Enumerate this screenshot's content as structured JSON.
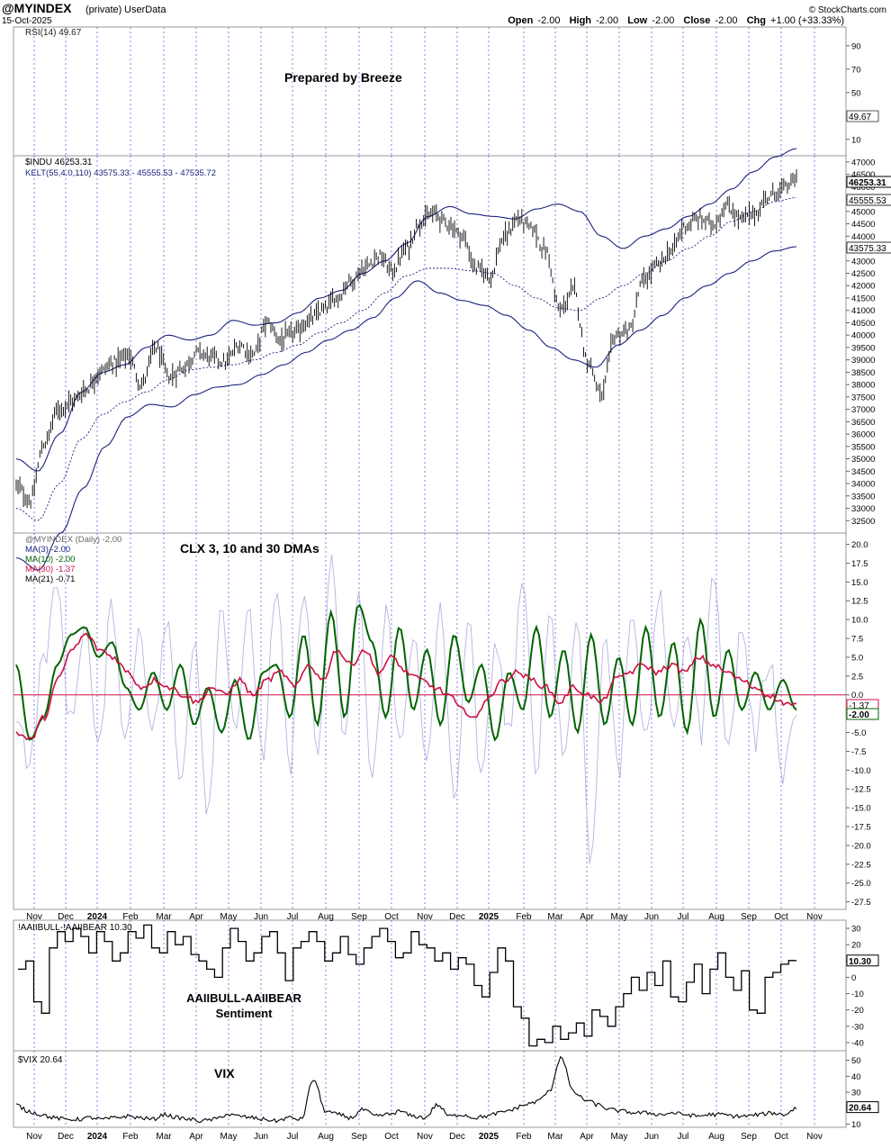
{
  "header": {
    "symbol": "@MYINDEX",
    "privacy": "(private)",
    "source": "UserData",
    "date": "15-Oct-2025",
    "open_label": "Open",
    "open_value": "-2.00",
    "high_label": "High",
    "high_value": "-2.00",
    "low_label": "Low",
    "low_value": "-2.00",
    "close_label": "Close",
    "close_value": "-2.00",
    "chg_label": "Chg",
    "chg_value": "+1.00 (+33.33%)",
    "brand": "© StockCharts.com"
  },
  "colors": {
    "navy": "#1a237e",
    "green": "#006400",
    "red": "#cc1040",
    "grid": "#3a3ad0",
    "lavender": "#b4b4e0",
    "price_bar": "#000000"
  },
  "x_axis": {
    "labels_top": [
      "Nov",
      "Dec",
      "2024",
      "Feb",
      "Mar",
      "Apr",
      "May",
      "Jun",
      "Jul",
      "Aug",
      "Sep",
      "Oct",
      "Nov",
      "Dec",
      "2025",
      "Feb",
      "Mar",
      "Apr",
      "May",
      "Jun",
      "Jul",
      "Aug",
      "Sep",
      "Oct",
      "Nov"
    ],
    "labels_bottom": [
      "Nov",
      "Dec",
      "2024",
      "Feb",
      "Mar",
      "Apr",
      "May",
      "Jun",
      "Jul",
      "Aug",
      "Sep",
      "Oct",
      "Nov",
      "Dec",
      "2025",
      "Feb",
      "Mar",
      "Apr",
      "May",
      "Jun",
      "Jul",
      "Aug",
      "Sep",
      "Oct",
      "Nov"
    ]
  },
  "chart_data": [
    {
      "panel": "rsi",
      "type": "line",
      "legend": "RSI(14) 49.67",
      "annotation": "Prepared by Breeze",
      "ylim": [
        0,
        100
      ],
      "y_ticks": [
        "90",
        "70",
        "50",
        "30",
        "10"
      ],
      "last_value": "49.67"
    },
    {
      "panel": "price",
      "type": "ohlc",
      "legend": [
        "$INDU 46253.31",
        "KELT(55,4.0,110) 43575.33 - 45555.53 - 47535.72"
      ],
      "ylim": [
        32000,
        47000
      ],
      "y_ticks": [
        "47000",
        "46500",
        "46000",
        "45500",
        "45000",
        "44500",
        "44000",
        "43500",
        "43000",
        "42500",
        "42000",
        "41500",
        "41000",
        "40500",
        "40000",
        "39500",
        "39000",
        "38500",
        "38000",
        "37500",
        "37000",
        "36500",
        "36000",
        "35500",
        "35000",
        "34500",
        "34000",
        "33500",
        "33000",
        "32500"
      ],
      "labels": {
        "close": "46253.31",
        "middle": "45555.53",
        "lower": "43575.33"
      },
      "x_months": [
        0,
        1,
        2,
        3,
        4,
        5,
        6,
        7,
        8,
        9,
        10,
        11,
        12,
        13,
        14,
        15,
        16,
        17,
        18,
        19,
        20,
        21,
        22,
        23,
        23.5
      ],
      "close_keypoints": [
        33900,
        33300,
        35600,
        37000,
        37300,
        37800,
        38500,
        38900,
        39200,
        38000,
        39500,
        38300,
        38700,
        39300,
        39100,
        38900,
        39600,
        39200,
        40500,
        39800,
        40100,
        40600,
        41000,
        41500,
        42200,
        42700,
        43200,
        42600,
        43500,
        44600,
        44900,
        44500,
        44000,
        42700,
        42400,
        43900,
        44700,
        44300,
        43400,
        41000,
        41800,
        39000,
        37600,
        40000,
        40200,
        42200,
        42800,
        43400,
        44400,
        44700,
        44500,
        45200,
        44700,
        44900,
        45600,
        45900,
        46300
      ],
      "upper_keypoints": [
        35000,
        34500,
        36000,
        37700,
        38500,
        38800,
        39500,
        40000,
        39800,
        40000,
        40600,
        40400,
        40500,
        40900,
        41500,
        41800,
        42500,
        43000,
        43700,
        44800,
        45200,
        44900,
        44800,
        44700,
        45100,
        45300,
        45000,
        44000,
        43500,
        44000,
        44300,
        44800,
        45300,
        45900,
        46600,
        47200,
        47540
      ],
      "mid_keypoints": [
        33000,
        32500,
        34000,
        35800,
        36800,
        37300,
        37700,
        38200,
        38600,
        38700,
        38800,
        39000,
        39300,
        39600,
        40100,
        40500,
        41000,
        41700,
        42400,
        42700,
        42700,
        42600,
        42500,
        42000,
        41500,
        41100,
        41000,
        41500,
        42000,
        42500,
        43000,
        43500,
        44000,
        44600,
        45000,
        45400,
        45560
      ],
      "lower_keypoints": [
        31000,
        30500,
        32000,
        33800,
        35500,
        36700,
        37200,
        37100,
        37600,
        37900,
        38000,
        38400,
        38800,
        39300,
        39800,
        40200,
        40700,
        41500,
        42200,
        41700,
        41400,
        41200,
        40800,
        40200,
        39500,
        39000,
        38700,
        39600,
        40200,
        40800,
        41500,
        42000,
        42500,
        43000,
        43400,
        43575
      ]
    },
    {
      "panel": "clx",
      "type": "line",
      "legend": [
        "@MYINDEX (Daily) -2.00",
        "MA(3) -2.00",
        "MA(10) -2.00",
        "MA(30) -1.37",
        "MA(21) -0.71"
      ],
      "annotation": "CLX 3, 10 and 30 DMAs",
      "ylim": [
        -27.5,
        20
      ],
      "y_ticks": [
        "20.0",
        "17.5",
        "15.0",
        "12.5",
        "10.0",
        "7.5",
        "5.0",
        "2.5",
        "0.0",
        "-2.5",
        "-5.0",
        "-7.5",
        "-10.0",
        "-12.5",
        "-15.0",
        "-17.5",
        "-20.0",
        "-22.5",
        "-25.0",
        "-27.5"
      ],
      "labels": {
        "ma30": "-1.37",
        "ma10": "-2.00"
      },
      "ma10_keypoints": [
        4,
        -6,
        -3,
        4,
        8,
        9,
        5,
        7,
        1,
        -2,
        3,
        -2,
        4,
        -4,
        1,
        -5,
        2,
        -6,
        3,
        4,
        -3,
        8,
        -4,
        11,
        -3,
        12,
        7,
        -3,
        9,
        -2,
        6,
        -4,
        8,
        -1,
        4,
        -6,
        3,
        -2,
        9,
        -3,
        6,
        -5,
        8,
        -4,
        5,
        -4,
        9,
        -3,
        7,
        -5,
        10,
        -3,
        6,
        -2,
        3,
        -2,
        2,
        -2
      ],
      "ma30_keypoints": [
        -5,
        -6,
        -3,
        2,
        6,
        8,
        6,
        5,
        3,
        1,
        2,
        1,
        0,
        -1,
        1,
        0,
        2,
        0,
        2,
        3,
        1,
        4,
        2,
        6,
        4,
        6,
        3,
        5,
        3,
        2,
        1,
        0,
        -2,
        -3,
        0,
        2,
        3,
        2,
        1,
        -1,
        1,
        0,
        -1,
        2,
        3,
        4,
        3,
        4,
        3,
        5,
        4,
        3,
        2,
        1,
        0,
        -1,
        -1.4
      ],
      "daily_keypoints": [
        -2,
        -9,
        5,
        14,
        -4,
        10,
        -8,
        12,
        -6,
        9,
        -5,
        10,
        -12,
        8,
        -15,
        12,
        -4,
        10,
        -8,
        13,
        -10,
        15,
        -8,
        17,
        -6,
        14,
        -12,
        11,
        -6,
        8,
        -10,
        12,
        -15,
        10,
        -12,
        7,
        -5,
        14,
        -9,
        11,
        -8,
        10,
        -22,
        8,
        -10,
        12,
        -7,
        14,
        -6,
        9,
        -5,
        17,
        -8,
        9,
        -6,
        5,
        -10,
        -2
      ],
      "zero_line": 0
    },
    {
      "panel": "sentiment",
      "type": "step",
      "legend": "!AAIIBULL-!AAIIBEAR 10.30",
      "annotation": [
        "AAIIBULL-AAIIBEAR",
        "Sentiment"
      ],
      "ylim": [
        -45,
        35
      ],
      "y_ticks": [
        "30",
        "20",
        "10",
        "0",
        "-10",
        "-20",
        "-30",
        "-40"
      ],
      "last_value": "10.30",
      "values": [
        5,
        10,
        -15,
        -22,
        18,
        28,
        22,
        30,
        25,
        15,
        28,
        22,
        10,
        15,
        28,
        24,
        32,
        18,
        15,
        28,
        20,
        25,
        14,
        10,
        5,
        0,
        18,
        30,
        22,
        10,
        15,
        25,
        28,
        15,
        -2,
        18,
        22,
        28,
        22,
        10,
        15,
        25,
        14,
        8,
        18,
        25,
        30,
        22,
        12,
        15,
        28,
        20,
        18,
        10,
        15,
        5,
        12,
        8,
        -5,
        -12,
        3,
        18,
        10,
        -18,
        -25,
        -42,
        -38,
        -40,
        -30,
        -38,
        -34,
        -28,
        -36,
        -20,
        -24,
        -30,
        -18,
        -10,
        0,
        -8,
        3,
        -5,
        10,
        -12,
        -15,
        -3,
        8,
        -10,
        5,
        15,
        0,
        -8,
        4,
        -20,
        -22,
        0,
        3,
        8,
        10.3
      ],
      "source_x_start": 20,
      "source_x_end": 885
    },
    {
      "panel": "vix",
      "type": "line",
      "legend": "$VIX 20.64",
      "annotation": "VIX",
      "ylim": [
        10,
        55
      ],
      "y_ticks": [
        "50",
        "40",
        "30",
        "20",
        "10"
      ],
      "last_value": "20.64"
    }
  ]
}
